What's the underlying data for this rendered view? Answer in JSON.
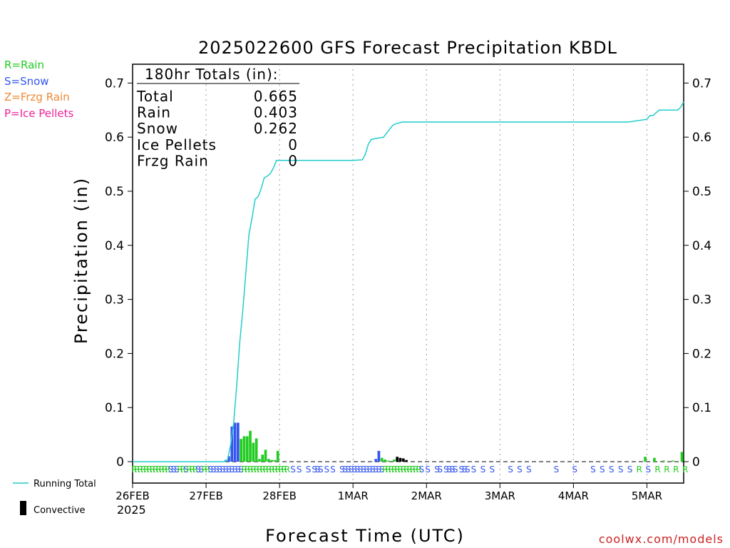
{
  "chart_data": {
    "type": "bar",
    "title": "2025022600 GFS Forecast Precipitation KBDL",
    "xlabel": "Forecast Time (UTC)",
    "ylabel": "Precipitation (in)",
    "ylim": [
      0,
      0.73
    ],
    "xlim_hours": [
      0,
      180
    ],
    "y_ticks": [
      "0",
      "0.1",
      "0.2",
      "0.3",
      "0.4",
      "0.5",
      "0.6",
      "0.7"
    ],
    "x_ticks": [
      "26FEB",
      "27FEB",
      "28FEB",
      "1MAR",
      "2MAR",
      "3MAR",
      "4MAR",
      "5MAR"
    ],
    "x_sublabel": "2025",
    "grid": "vertical dotted at day boundaries",
    "legend_types": [
      {
        "label": "R=Rain",
        "color": "#22cc22"
      },
      {
        "label": "S=Snow",
        "color": "#3355ee"
      },
      {
        "label": "Z=Frzg Rain",
        "color": "#ee8833"
      },
      {
        "label": "P=Ice Pellets",
        "color": "#ee2299"
      }
    ],
    "legend_series": [
      {
        "label": "Running Total",
        "color": "#22cccc"
      },
      {
        "label": "Convective",
        "color": "#000000"
      }
    ],
    "totals": {
      "header": "180hr Totals (in):",
      "rows": [
        {
          "label": "Total",
          "value": "0.665"
        },
        {
          "label": "Rain",
          "value": "0.403"
        },
        {
          "label": "Snow",
          "value": "0.262"
        },
        {
          "label": "Ice Pellets",
          "value": "0"
        },
        {
          "label": "Frzg Rain",
          "value": "0"
        }
      ]
    },
    "running_total": {
      "hours": [
        0,
        30,
        31,
        32,
        33,
        34,
        35,
        36,
        37,
        38,
        39,
        40,
        41,
        42,
        43,
        44,
        45,
        46,
        47,
        48,
        49,
        72,
        75,
        76,
        77,
        78,
        82,
        84,
        85,
        86,
        87,
        88,
        89,
        90,
        162,
        168,
        169,
        170,
        171,
        172,
        178,
        179,
        180
      ],
      "values": [
        0,
        0,
        0.003,
        0.03,
        0.07,
        0.14,
        0.22,
        0.28,
        0.35,
        0.42,
        0.45,
        0.485,
        0.49,
        0.505,
        0.525,
        0.528,
        0.533,
        0.543,
        0.557,
        0.557,
        0.557,
        0.557,
        0.558,
        0.568,
        0.587,
        0.596,
        0.6,
        0.615,
        0.622,
        0.625,
        0.626,
        0.628,
        0.628,
        0.628,
        0.628,
        0.633,
        0.64,
        0.64,
        0.645,
        0.65,
        0.65,
        0.655,
        0.665
      ]
    },
    "bars": [
      {
        "hour": 31,
        "value": 0.003,
        "type": "snow"
      },
      {
        "hour": 32,
        "value": 0.01,
        "type": "snow"
      },
      {
        "hour": 33,
        "value": 0.065,
        "type": "snow"
      },
      {
        "hour": 34,
        "value": 0.072,
        "type": "snow"
      },
      {
        "hour": 35,
        "value": 0.072,
        "type": "snow"
      },
      {
        "hour": 36,
        "value": 0.042,
        "type": "rain"
      },
      {
        "hour": 37,
        "value": 0.047,
        "type": "rain"
      },
      {
        "hour": 38,
        "value": 0.047,
        "type": "rain"
      },
      {
        "hour": 39,
        "value": 0.057,
        "type": "rain"
      },
      {
        "hour": 40,
        "value": 0.035,
        "type": "rain"
      },
      {
        "hour": 41,
        "value": 0.043,
        "type": "rain"
      },
      {
        "hour": 42,
        "value": 0.005,
        "type": "rain"
      },
      {
        "hour": 43,
        "value": 0.013,
        "type": "rain"
      },
      {
        "hour": 44,
        "value": 0.022,
        "type": "rain"
      },
      {
        "hour": 45,
        "value": 0.005,
        "type": "rain"
      },
      {
        "hour": 46,
        "value": 0.003,
        "type": "rain"
      },
      {
        "hour": 47,
        "value": 0.003,
        "type": "rain"
      },
      {
        "hour": 48,
        "value": 0.02,
        "type": "rain"
      },
      {
        "hour": 80,
        "value": 0.005,
        "type": "snow"
      },
      {
        "hour": 81,
        "value": 0.02,
        "type": "snow"
      },
      {
        "hour": 82,
        "value": 0.007,
        "type": "rain"
      },
      {
        "hour": 83,
        "value": 0.004,
        "type": "rain"
      },
      {
        "hour": 84,
        "value": 0.002,
        "type": "rain"
      },
      {
        "hour": 86,
        "value": 0.004,
        "type": "rain"
      },
      {
        "hour": 87,
        "value": 0.009,
        "type": "convective"
      },
      {
        "hour": 88,
        "value": 0.007,
        "type": "convective"
      },
      {
        "hour": 89,
        "value": 0.006,
        "type": "convective"
      },
      {
        "hour": 90,
        "value": 0.003,
        "type": "convective"
      },
      {
        "hour": 168,
        "value": 0.009,
        "type": "rain"
      },
      {
        "hour": 171,
        "value": 0.007,
        "type": "rain"
      },
      {
        "hour": 174,
        "value": 0.002,
        "type": "rain"
      },
      {
        "hour": 177,
        "value": 0.002,
        "type": "rain"
      },
      {
        "hour": 180,
        "value": 0.018,
        "type": "rain"
      }
    ],
    "ptype_row": {
      "hours": [
        0,
        1,
        2,
        3,
        4,
        5,
        6,
        7,
        8,
        9,
        10,
        11,
        12,
        13,
        14,
        15,
        16,
        17,
        18,
        19,
        20,
        21,
        22,
        23,
        24,
        25,
        26,
        27,
        28,
        29,
        30,
        31,
        32,
        33,
        34,
        35,
        36,
        37,
        38,
        39,
        40,
        41,
        42,
        43,
        44,
        45,
        46,
        47,
        48,
        49,
        50,
        52,
        54,
        57,
        59,
        60,
        61,
        63,
        65,
        68,
        69,
        70,
        71,
        72,
        73,
        74,
        75,
        76,
        77,
        78,
        79,
        80,
        81,
        82,
        83,
        84,
        85,
        86,
        87,
        88,
        89,
        90,
        91,
        92,
        93,
        94,
        96,
        99,
        100,
        102,
        103,
        104,
        105,
        107,
        108,
        109,
        111,
        114,
        117,
        123,
        126,
        129,
        138,
        144,
        150,
        153,
        156,
        159,
        162,
        165,
        168,
        171,
        174,
        177,
        180
      ],
      "types": [
        "R",
        "R",
        "R",
        "R",
        "R",
        "R",
        "R",
        "R",
        "R",
        "R",
        "R",
        "R",
        "S",
        "S",
        "S",
        "R",
        "R",
        "S",
        "R",
        "R",
        "R",
        "S",
        "S",
        "R",
        "R",
        "S",
        "S",
        "S",
        "S",
        "S",
        "S",
        "S",
        "S",
        "S",
        "S",
        "S",
        "R",
        "R",
        "R",
        "R",
        "R",
        "R",
        "R",
        "R",
        "R",
        "R",
        "R",
        "R",
        "R",
        "R",
        "R",
        "S",
        "S",
        "S",
        "S",
        "S",
        "S",
        "S",
        "S",
        "S",
        "S",
        "S",
        "S",
        "S",
        "S",
        "S",
        "S",
        "S",
        "S",
        "S",
        "S",
        "S",
        "S",
        "R",
        "R",
        "R",
        "R",
        "R",
        "R",
        "R",
        "R",
        "R",
        "R",
        "R",
        "R",
        "S",
        "S",
        "S",
        "S",
        "S",
        "S",
        "S",
        "S",
        "S",
        "S",
        "S",
        "S",
        "S",
        "S",
        "S",
        "S",
        "S",
        "S",
        "S",
        "S",
        "S",
        "S",
        "S",
        "S",
        "R",
        "S",
        "R",
        "R",
        "R",
        "R"
      ]
    }
  },
  "branding": {
    "url_label": "coolwx.com/models"
  },
  "colors": {
    "rain": "#22cc22",
    "snow": "#3355ee",
    "convective": "#000000",
    "running_total": "#22cccc",
    "frzg_rain": "#ee8833",
    "ice_pellets": "#ee2299"
  }
}
